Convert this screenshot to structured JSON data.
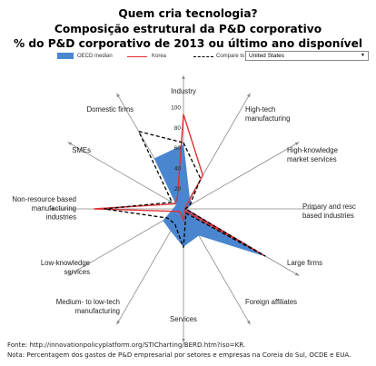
{
  "title_lines": [
    "Quem cria tecnologia?",
    "Composição estrutural da P&D corporativo",
    "% do P&D corporativo de 2013 ou último ano disponível"
  ],
  "legend": {
    "oecd_label": "OECD median",
    "korea_label": "Korea",
    "compare_label": "Compare to",
    "compare_value": "United States"
  },
  "source": "Fonte: http://innovationpolicyplatform.org/STICharting/BERD.htm?iso=KR.",
  "note": "Nota: Percentagem dos gastos de P&D empresarial por setores e empresas na Coreia do Sul, OCDE e EUA.",
  "chart_data": {
    "type": "radar",
    "categories": [
      "Industry",
      "High-tech manufacturing",
      "High-knowledge market services",
      "Primary and resource based industries",
      "Large firms",
      "Foreign affiliates",
      "Services",
      "Medium- to low-tech manufacturing",
      "Low-knowledge services",
      "Non-resource based manufacturing industries",
      "SMEs",
      "Domestic firms"
    ],
    "category_display_lines": [
      [
        "Industry"
      ],
      [
        "High-tech",
        "manufacturing"
      ],
      [
        "High-knowledge",
        "market services"
      ],
      [
        "Primary and resc",
        "based industries"
      ],
      [
        "Large firms"
      ],
      [
        "Foreign affiliates"
      ],
      [
        "Services"
      ],
      [
        "Medium- to low-tech",
        "manufacturing"
      ],
      [
        "Low-knowledge",
        "services"
      ],
      [
        "Non-resource based",
        "manufacturing",
        "industries"
      ],
      [
        "SMEs"
      ],
      [
        "Domestic firms"
      ]
    ],
    "radial_ticks": [
      0,
      20,
      40,
      60,
      80,
      100
    ],
    "rlim": [
      0,
      100
    ],
    "series": [
      {
        "name": "OECD median",
        "style": "area",
        "color": "#4a86cf",
        "values": [
          63,
          12,
          10,
          3,
          93,
          30,
          37,
          25,
          23,
          10,
          8,
          57
        ]
      },
      {
        "name": "Korea",
        "style": "line",
        "color": "#e03131",
        "values": [
          93,
          38,
          2,
          2,
          93,
          2,
          12,
          5,
          5,
          88,
          10,
          12
        ]
      },
      {
        "name": "United States",
        "style": "dashed",
        "color": "#000000",
        "values": [
          65,
          34,
          7,
          2,
          93,
          5,
          38,
          17,
          18,
          78,
          13,
          88
        ]
      }
    ]
  }
}
